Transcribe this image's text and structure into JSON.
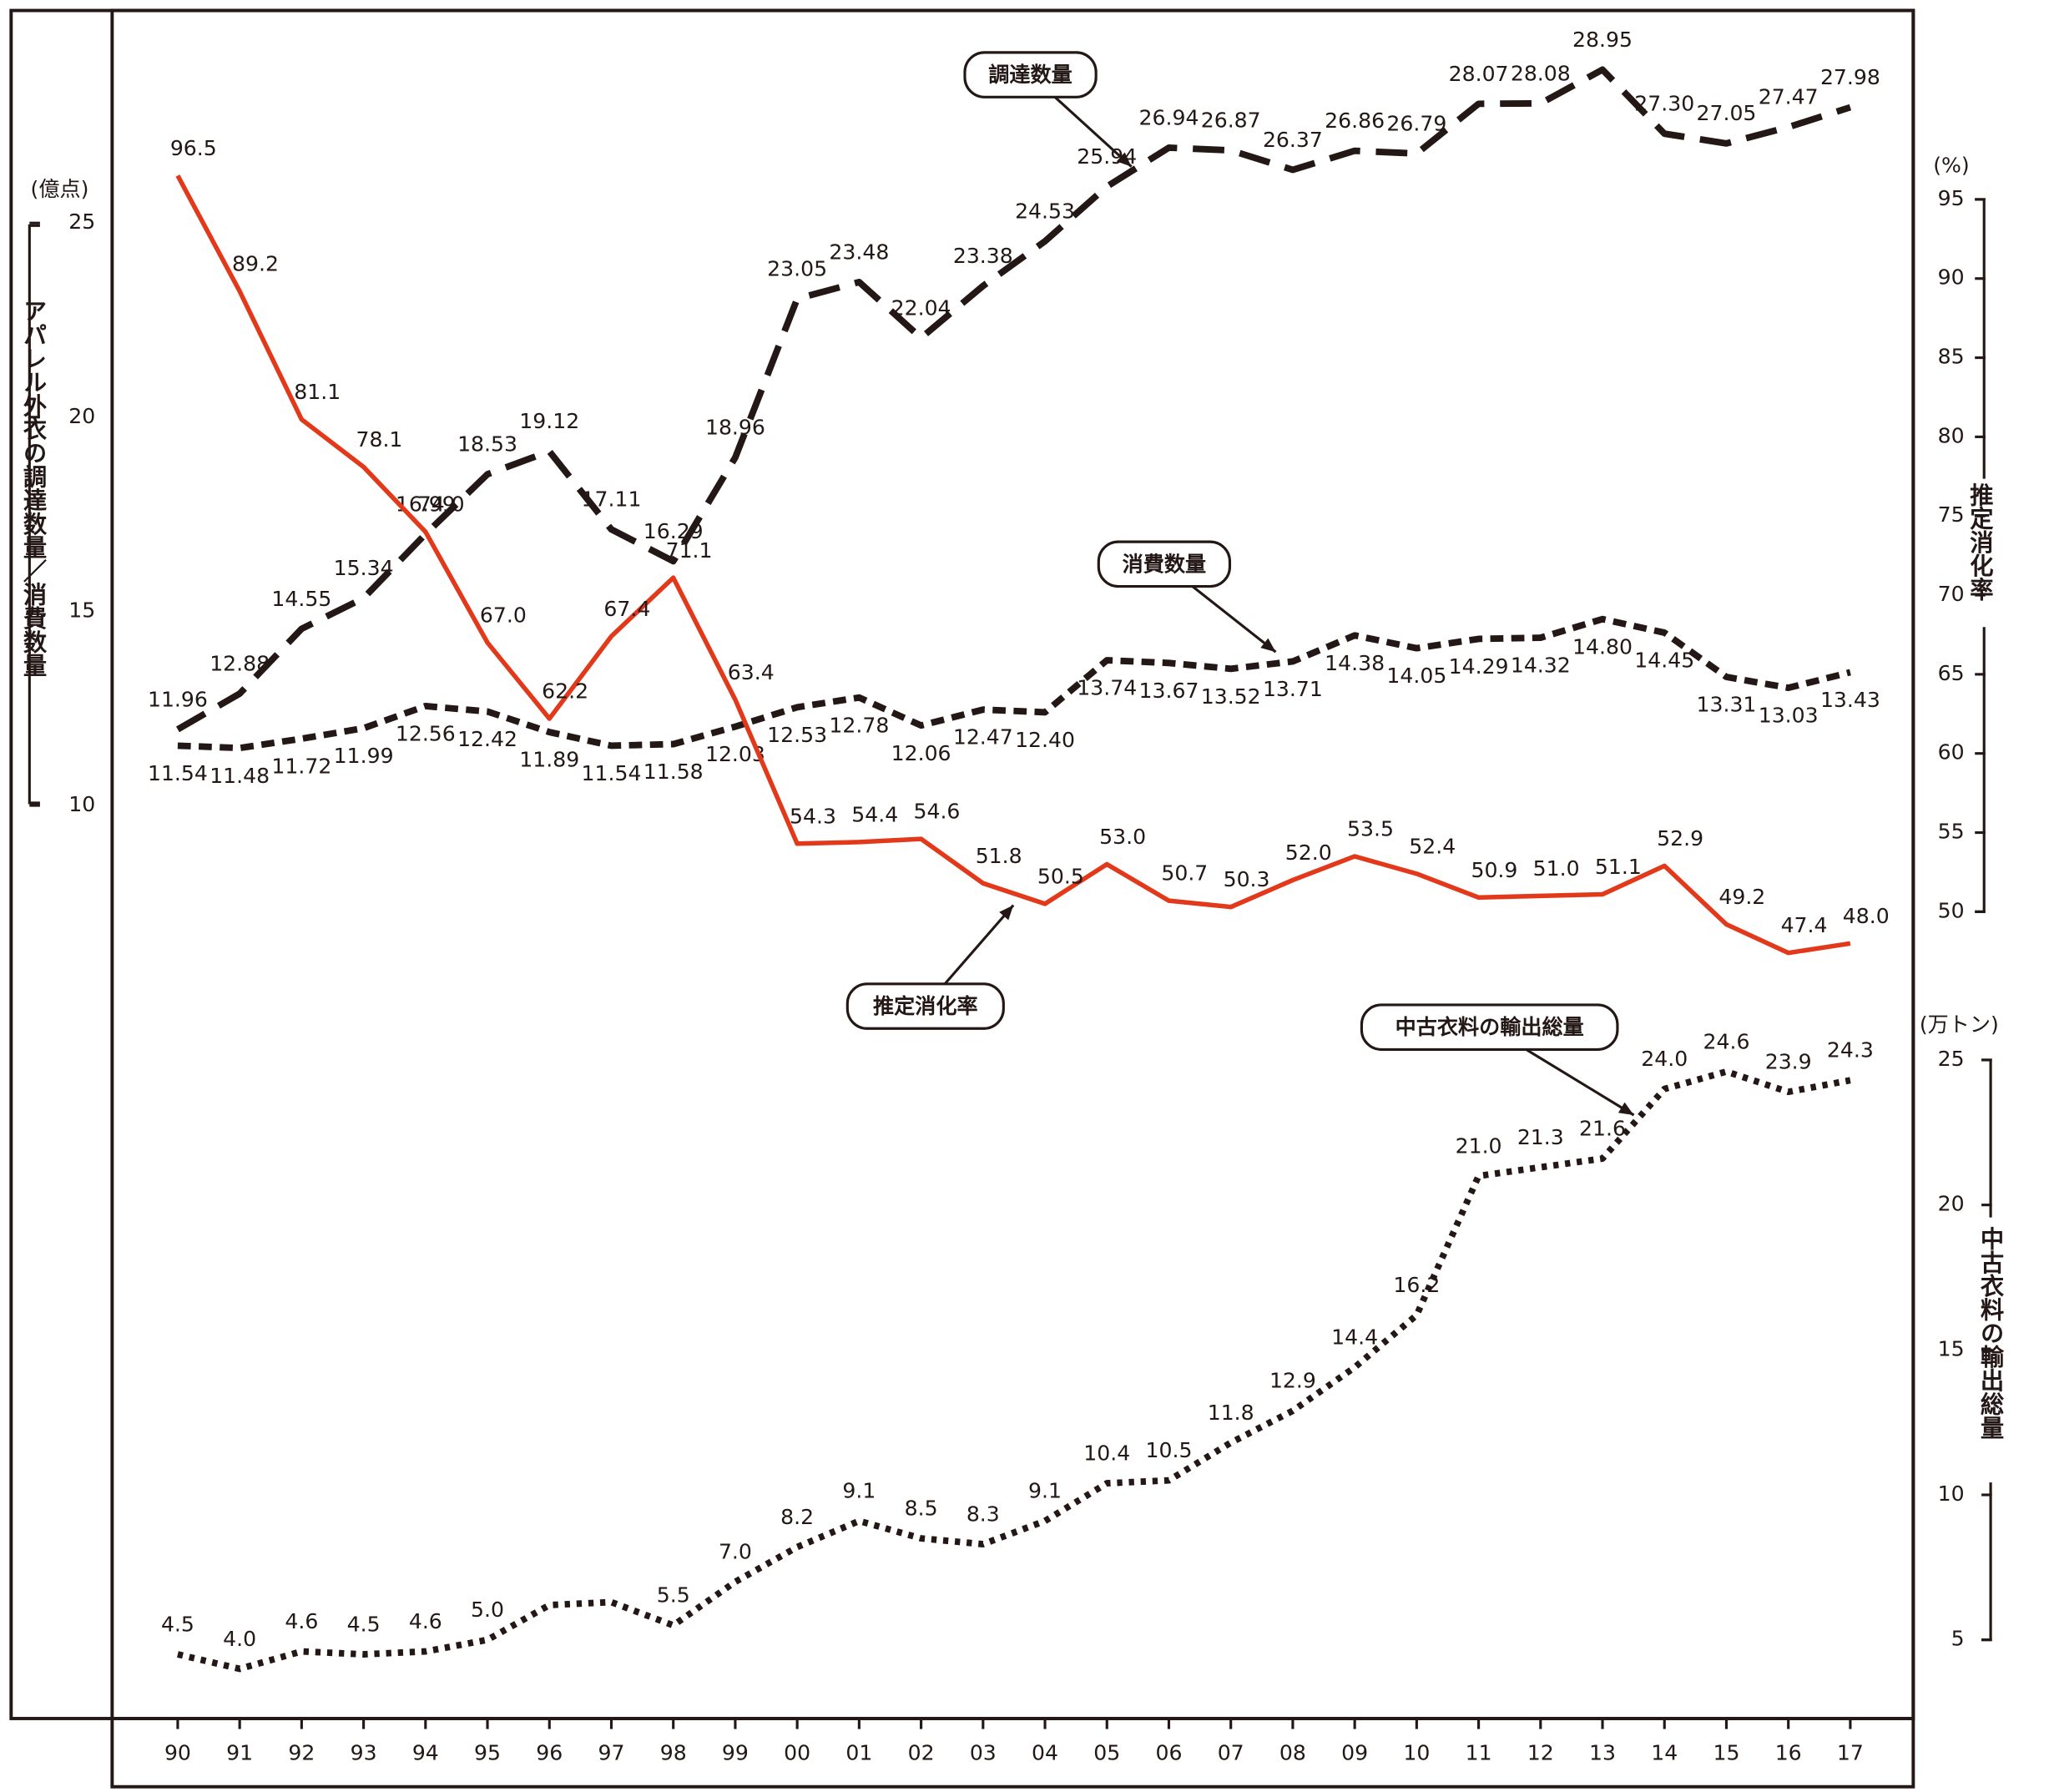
{
  "chart_data": {
    "type": "line",
    "categories": [
      "90",
      "91",
      "92",
      "93",
      "94",
      "95",
      "96",
      "97",
      "98",
      "99",
      "00",
      "01",
      "02",
      "03",
      "04",
      "05",
      "06",
      "07",
      "08",
      "09",
      "10",
      "11",
      "12",
      "13",
      "14",
      "15",
      "16",
      "17"
    ],
    "series": [
      {
        "name": "調達数量",
        "color": "#231815",
        "style": "long-dash",
        "axis": "y",
        "values": [
          11.96,
          12.88,
          14.55,
          15.34,
          16.99,
          18.53,
          19.12,
          17.11,
          16.29,
          18.96,
          23.05,
          23.48,
          22.04,
          23.38,
          24.53,
          25.94,
          26.94,
          26.87,
          26.37,
          26.86,
          26.79,
          28.07,
          28.08,
          28.95,
          27.3,
          27.05,
          27.47,
          27.98
        ],
        "value_labels": [
          "11.96",
          "12.88",
          "14.55",
          "15.34",
          "16.99",
          "18.53",
          "19.12",
          "17.11",
          "16.29",
          "18.96",
          "23.05",
          "23.48",
          "22.04",
          "23.38",
          "24.53",
          "25.94",
          "26.94",
          "26.87",
          "26.37",
          "26.86",
          "26.79",
          "28.07",
          "28.08",
          "28.95",
          "27.30",
          "27.05",
          "27.47",
          "27.98"
        ]
      },
      {
        "name": "消費数量",
        "color": "#231815",
        "style": "short-dash",
        "axis": "y",
        "values": [
          11.54,
          11.48,
          11.72,
          11.99,
          12.56,
          12.42,
          11.89,
          11.54,
          11.58,
          12.03,
          12.53,
          12.78,
          12.06,
          12.47,
          12.4,
          13.74,
          13.67,
          13.52,
          13.71,
          14.38,
          14.05,
          14.29,
          14.32,
          14.8,
          14.45,
          13.31,
          13.03,
          13.43
        ],
        "value_labels": [
          "11.54",
          "11.48",
          "11.72",
          "11.99",
          "12.56",
          "12.42",
          "11.89",
          "11.54",
          "11.58",
          "12.03",
          "12.53",
          "12.78",
          "12.06",
          "12.47",
          "12.40",
          "13.74",
          "13.67",
          "13.52",
          "13.71",
          "14.38",
          "14.05",
          "14.29",
          "14.32",
          "14.80",
          "14.45",
          "13.31",
          "13.03",
          "13.43"
        ]
      },
      {
        "name": "推定消化率",
        "color": "#e2391b",
        "style": "solid",
        "axis": "y2",
        "values": [
          96.5,
          89.2,
          81.1,
          78.1,
          74.0,
          67.0,
          62.2,
          67.4,
          71.1,
          63.4,
          54.3,
          54.4,
          54.6,
          51.8,
          50.5,
          53.0,
          50.7,
          50.3,
          52.0,
          53.5,
          52.4,
          50.9,
          51.0,
          51.1,
          52.9,
          49.2,
          47.4,
          48.0
        ],
        "value_labels": [
          "96.5",
          "89.2",
          "81.1",
          "78.1",
          "74.0",
          "67.0",
          "62.2",
          "67.4",
          "71.1",
          "63.4",
          "54.3",
          "54.4",
          "54.6",
          "51.8",
          "50.5",
          "53.0",
          "50.7",
          "50.3",
          "52.0",
          "53.5",
          "52.4",
          "50.9",
          "51.0",
          "51.1",
          "52.9",
          "49.2",
          "47.4",
          "48.0"
        ]
      },
      {
        "name": "中古衣料の輸出総量",
        "color": "#231815",
        "style": "dotted",
        "axis": "y3",
        "values": [
          4.5,
          4.0,
          4.6,
          4.5,
          4.6,
          5.0,
          6.2,
          6.3,
          5.5,
          7.0,
          8.2,
          9.1,
          8.5,
          8.3,
          9.1,
          10.4,
          10.5,
          11.8,
          12.9,
          14.4,
          16.2,
          21.0,
          21.3,
          21.6,
          24.0,
          24.6,
          23.9,
          24.3
        ],
        "value_labels": [
          "4.5",
          "4.0",
          "4.6",
          "4.5",
          "4.6",
          "5.0",
          null,
          null,
          "5.5",
          "7.0",
          "8.2",
          "9.1",
          "8.5",
          "8.3",
          "9.1",
          "10.4",
          "10.5",
          "11.8",
          "12.9",
          "14.4",
          "16.2",
          "21.0",
          "21.3",
          "21.6",
          "24.0",
          "24.6",
          "23.9",
          "24.3"
        ]
      }
    ],
    "ylabel": "アパレル外衣の調達数量／消費数量",
    "yunit": "(億点)",
    "ylim": [
      10,
      25
    ],
    "yticks": [
      10,
      15,
      20,
      25
    ],
    "y2label": "推定消化率",
    "y2unit": "(%)",
    "y2lim": [
      50,
      95
    ],
    "y2ticks": [
      50,
      55,
      60,
      65,
      70,
      75,
      80,
      85,
      90,
      95
    ],
    "y3label": "中古衣料の輸出総量",
    "y3unit": "(万トン)",
    "y3lim": [
      5,
      25
    ],
    "y3ticks": [
      5,
      10,
      15,
      20,
      25
    ]
  }
}
